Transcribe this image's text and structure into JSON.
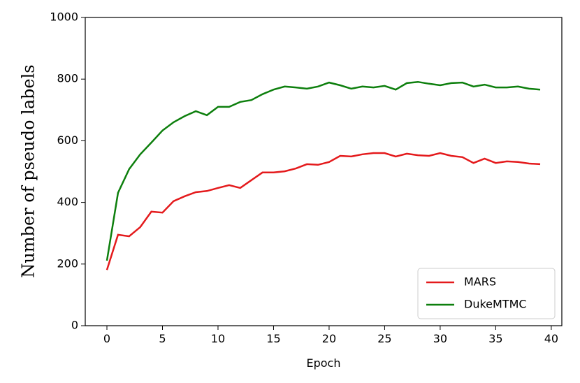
{
  "chart_data": {
    "type": "line",
    "xlabel": "Epoch",
    "ylabel": "Number of pseudo labels",
    "x": [
      0,
      1,
      2,
      3,
      4,
      5,
      6,
      7,
      8,
      9,
      10,
      11,
      12,
      13,
      14,
      15,
      16,
      17,
      18,
      19,
      20,
      21,
      22,
      23,
      24,
      25,
      26,
      27,
      28,
      29,
      30,
      31,
      32,
      33,
      34,
      35,
      36,
      37,
      38,
      39
    ],
    "series": [
      {
        "name": "MARS",
        "color": "#e41a1c",
        "values": [
          181,
          295,
          290,
          320,
          370,
          367,
          404,
          420,
          433,
          437,
          447,
          456,
          447,
          472,
          497,
          497,
          501,
          510,
          524,
          522,
          531,
          551,
          549,
          556,
          560,
          560,
          549,
          558,
          553,
          551,
          560,
          551,
          547,
          528,
          542,
          528,
          533,
          531,
          526,
          524
        ]
      },
      {
        "name": "DukeMTMC",
        "color": "#0d7f0d",
        "values": [
          211,
          431,
          508,
          556,
          594,
          633,
          660,
          680,
          696,
          683,
          710,
          710,
          726,
          732,
          751,
          766,
          776,
          773,
          769,
          776,
          789,
          780,
          769,
          776,
          773,
          778,
          766,
          787,
          791,
          785,
          780,
          787,
          789,
          776,
          782,
          773,
          773,
          776,
          769,
          766
        ]
      }
    ],
    "xlim": [
      -1.95,
      40.95
    ],
    "xticks": [
      0,
      5,
      10,
      15,
      20,
      25,
      30,
      35,
      40
    ],
    "ylim": [
      0,
      1000
    ],
    "yticks": [
      0,
      200,
      400,
      600,
      800,
      1000
    ],
    "legend": "lower right"
  }
}
